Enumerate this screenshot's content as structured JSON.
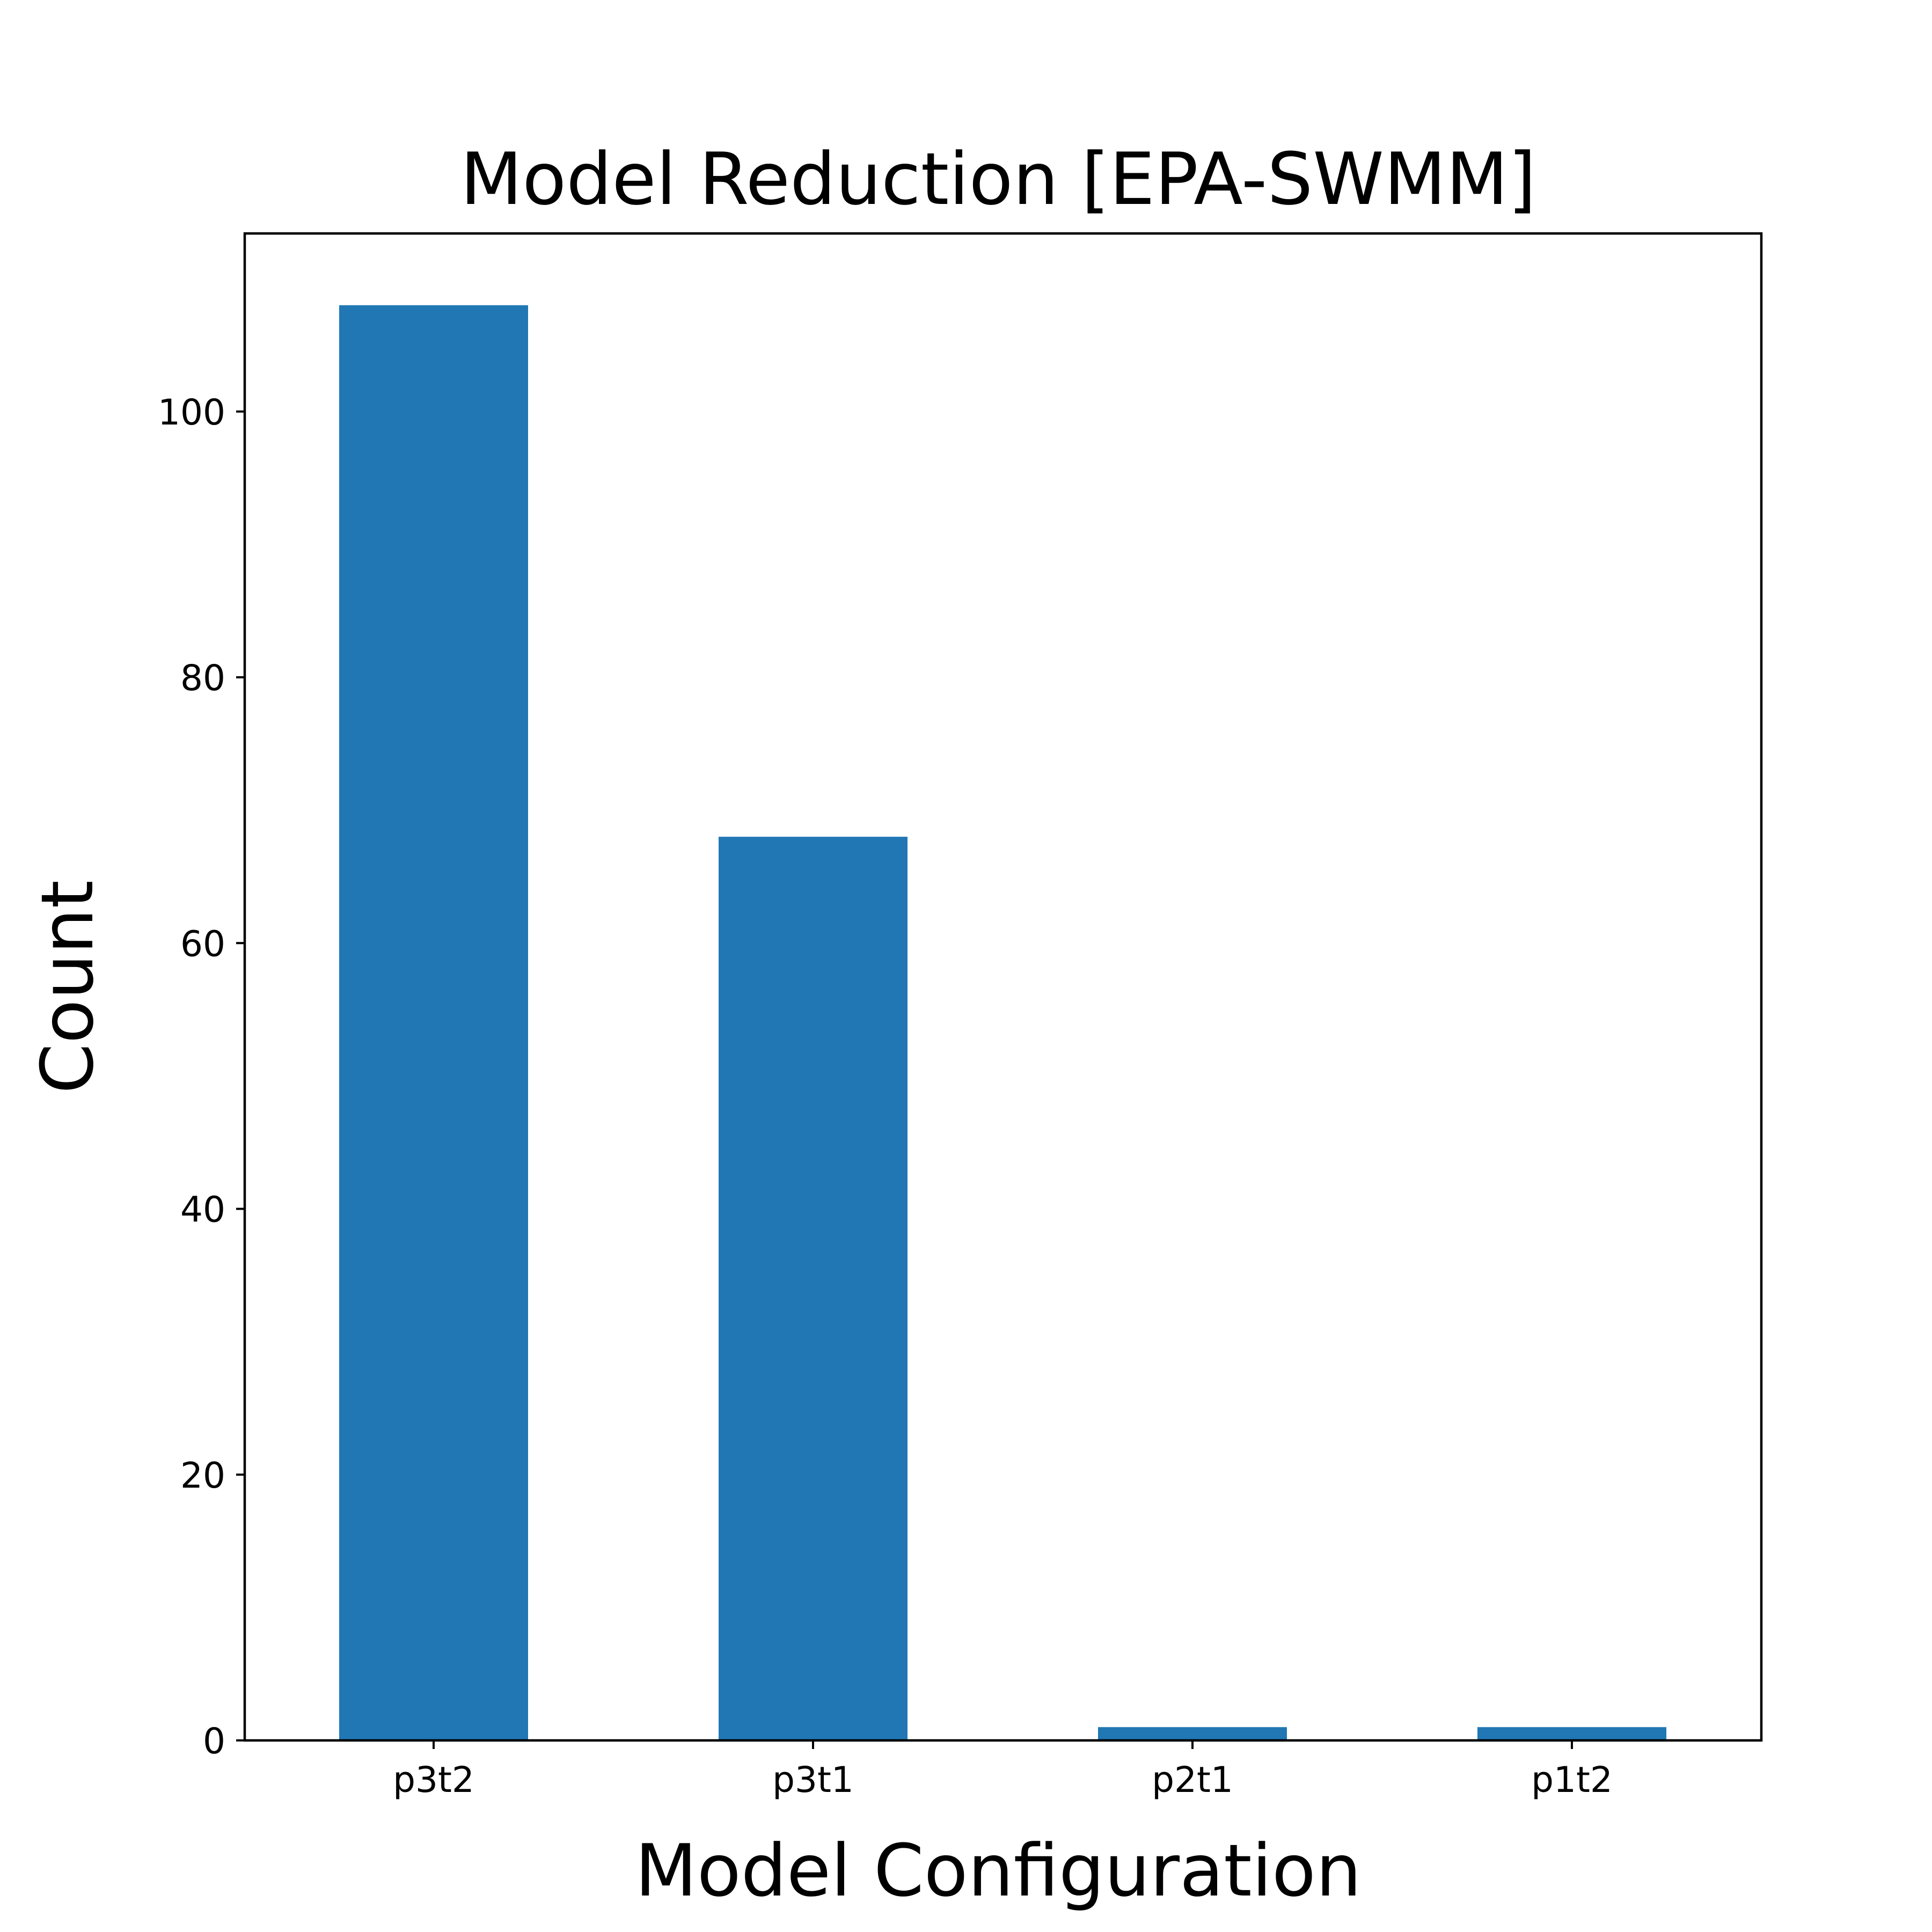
{
  "chart_data": {
    "type": "bar",
    "title": "Model Reduction [EPA-SWMM]",
    "xlabel": "Model Configuration",
    "ylabel": "Count",
    "categories": [
      "p3t2",
      "p3t1",
      "p2t1",
      "p1t2"
    ],
    "values": [
      108,
      68,
      1,
      1
    ],
    "ylim": [
      0,
      113.4
    ],
    "yticks": [
      0,
      20,
      40,
      60,
      80,
      100
    ],
    "bar_color": "#2077b4",
    "grid": false,
    "legend": "none"
  }
}
